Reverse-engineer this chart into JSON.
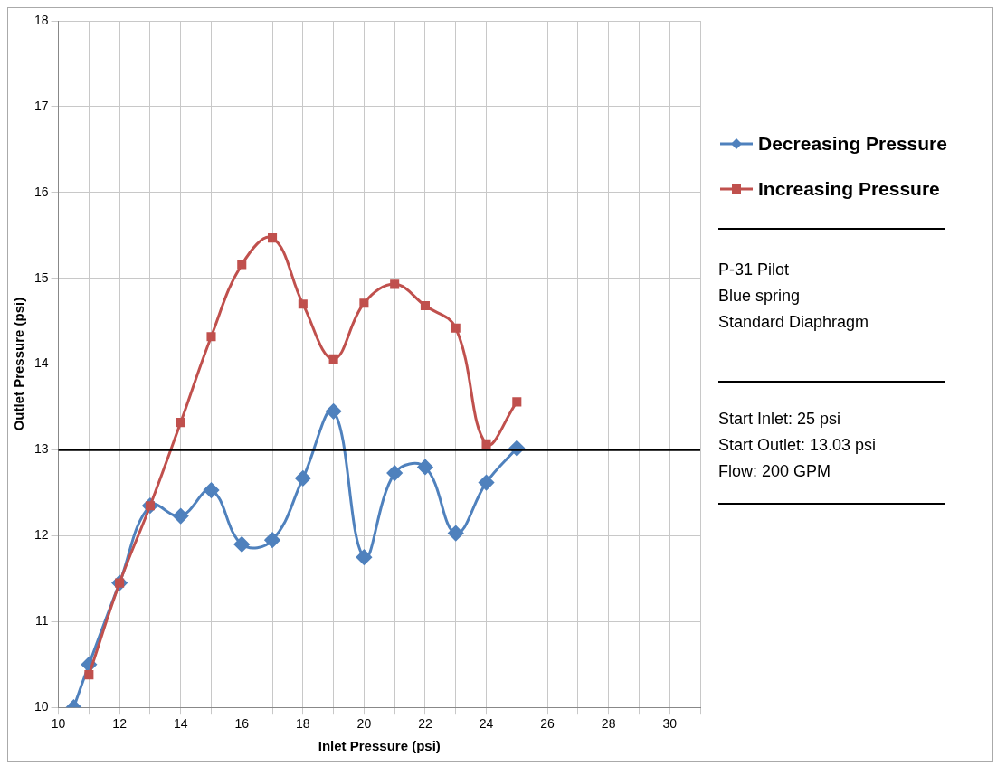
{
  "chart_data": {
    "type": "line",
    "xlabel": "Inlet Pressure (psi)",
    "ylabel": "Outlet Pressure (psi)",
    "xlim": [
      10,
      31
    ],
    "xticks": [
      10,
      12,
      14,
      16,
      18,
      20,
      22,
      24,
      26,
      28,
      30
    ],
    "ylim": [
      10,
      18
    ],
    "yticks": [
      10,
      11,
      12,
      13,
      14,
      15,
      16,
      17,
      18
    ],
    "grid": true,
    "legend": "right",
    "series": [
      {
        "name": "Decreasing Pressure",
        "color": "#4f81bd",
        "marker": "diamond",
        "x": [
          10.5,
          11,
          12,
          13,
          14,
          15,
          16,
          17,
          18,
          19,
          20,
          21,
          22,
          23,
          24,
          25
        ],
        "values": [
          10,
          10.5,
          11.45,
          12.35,
          12.23,
          12.53,
          11.9,
          11.95,
          12.67,
          13.45,
          11.75,
          12.73,
          12.8,
          12.03,
          12.62,
          13.02
        ]
      },
      {
        "name": "Increasing Pressure",
        "color": "#c0504d",
        "marker": "square",
        "x": [
          11,
          12,
          13,
          14,
          15,
          16,
          17,
          18,
          19,
          20,
          21,
          22,
          23,
          24,
          25
        ],
        "values": [
          10.38,
          11.45,
          12.35,
          13.32,
          14.32,
          15.16,
          15.47,
          14.7,
          14.06,
          14.71,
          14.93,
          14.68,
          14.42,
          13.07,
          13.56
        ]
      }
    ],
    "ref_lines": [
      {
        "axis": "y",
        "value": 13,
        "color": "#000000"
      }
    ],
    "annotations": [
      "P-31 Pilot",
      "Blue spring",
      "Standard Diaphragm",
      "Start Inlet:  25 psi",
      "Start Outlet:  13.03 psi",
      "Flow:  200 GPM"
    ]
  }
}
